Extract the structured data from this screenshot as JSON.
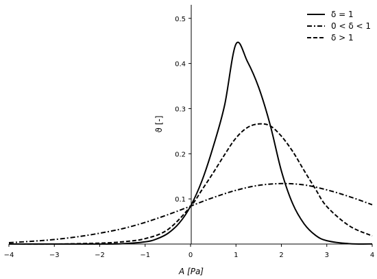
{
  "chart_data": {
    "type": "line",
    "xlabel": "A [Pa]",
    "ylabel": "ϑ [-]",
    "xlim": [
      -4,
      4
    ],
    "ylim": [
      0,
      0.53
    ],
    "xticks": [
      "−4",
      "−3",
      "−2",
      "−1",
      "0",
      "1",
      "2",
      "3",
      "4"
    ],
    "yticks": [
      "0.1",
      "0.2",
      "0.3",
      "0.4",
      "0.5"
    ],
    "ytick_values": [
      0.1,
      0.2,
      0.3,
      0.4,
      0.5
    ],
    "xtick_values": [
      -4,
      -3,
      -2,
      -1,
      0,
      1,
      2,
      3,
      4
    ],
    "legend_position": "top-right",
    "grid": false,
    "series": [
      {
        "name": "δ = 1",
        "style": "solid",
        "x": [
          -4,
          -3,
          -2,
          -1.5,
          -1,
          -0.75,
          -0.5,
          -0.25,
          0,
          0.25,
          0.5,
          0.75,
          1,
          1.25,
          1.5,
          1.75,
          2,
          2.25,
          2.5,
          2.75,
          3,
          3.5,
          4
        ],
        "y": [
          0,
          0,
          0,
          0.0007,
          0.0048,
          0.0111,
          0.0236,
          0.0463,
          0.0838,
          0.14,
          0.216,
          0.3077,
          0.4432,
          0.4049,
          0.347,
          0.2655,
          0.162,
          0.089,
          0.045,
          0.0195,
          0.0075,
          0.0008,
          0.0001
        ]
      },
      {
        "name": "0 < δ < 1",
        "style": "dashdot",
        "x": [
          -4,
          -3.5,
          -3,
          -2.5,
          -2,
          -1.5,
          -1,
          -0.5,
          0,
          0.5,
          1,
          1.5,
          2,
          2.5,
          3,
          3.5,
          4
        ],
        "y": [
          0.003,
          0.006,
          0.01,
          0.016,
          0.024,
          0.034,
          0.048,
          0.065,
          0.084,
          0.103,
          0.119,
          0.13,
          0.134,
          0.131,
          0.12,
          0.105,
          0.087
        ]
      },
      {
        "name": "δ > 1",
        "style": "dashed",
        "x": [
          -4,
          -3,
          -2,
          -1.5,
          -1,
          -0.5,
          0,
          0.25,
          0.5,
          0.75,
          1,
          1.25,
          1.5,
          1.75,
          2,
          2.25,
          2.5,
          2.75,
          3,
          3.5,
          4
        ],
        "y": [
          0,
          0,
          0.002,
          0.005,
          0.012,
          0.032,
          0.083,
          0.12,
          0.158,
          0.198,
          0.235,
          0.258,
          0.266,
          0.262,
          0.239,
          0.205,
          0.163,
          0.122,
          0.083,
          0.04,
          0.018
        ]
      }
    ]
  }
}
